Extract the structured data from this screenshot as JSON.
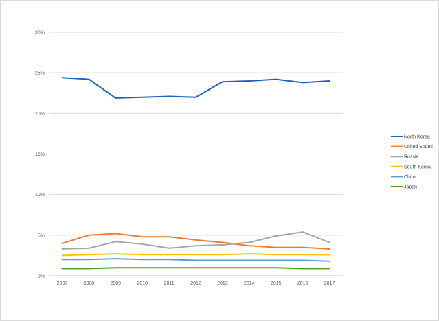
{
  "chart_data": {
    "type": "line",
    "title": "",
    "xlabel": "",
    "ylabel": "",
    "x": [
      "2007",
      "2008",
      "2009",
      "2010",
      "2011",
      "2012",
      "2013",
      "2014",
      "2015",
      "2016",
      "2017"
    ],
    "ylim": [
      0,
      30
    ],
    "yticks": [
      0,
      5,
      10,
      15,
      20,
      25,
      30
    ],
    "ytick_labels": [
      "0%",
      "5%",
      "10%",
      "15%",
      "20%",
      "25%",
      "30%"
    ],
    "grid": true,
    "legend_position": "right",
    "series": [
      {
        "name": "North Korea",
        "color": "#1f5fbf",
        "values": [
          24.4,
          24.2,
          21.9,
          22.0,
          22.1,
          22.0,
          23.9,
          24.0,
          24.2,
          23.8,
          24.0
        ]
      },
      {
        "name": "United States",
        "color": "#ed7d31",
        "values": [
          4.0,
          5.0,
          5.2,
          4.8,
          4.8,
          4.4,
          4.1,
          3.7,
          3.5,
          3.5,
          3.3
        ]
      },
      {
        "name": "Russia",
        "color": "#a5a5a5",
        "values": [
          3.3,
          3.4,
          4.2,
          3.9,
          3.4,
          3.7,
          3.8,
          4.1,
          4.9,
          5.4,
          4.1
        ]
      },
      {
        "name": "South Korea",
        "color": "#ffc000",
        "values": [
          2.5,
          2.6,
          2.7,
          2.6,
          2.6,
          2.6,
          2.6,
          2.7,
          2.6,
          2.6,
          2.6
        ]
      },
      {
        "name": "China",
        "color": "#5b9bd5",
        "values": [
          2.0,
          2.0,
          2.1,
          2.0,
          2.0,
          1.9,
          1.9,
          1.9,
          1.9,
          1.9,
          1.8
        ]
      },
      {
        "name": "Japan",
        "color": "#4e9a1f",
        "values": [
          0.9,
          0.9,
          1.0,
          1.0,
          1.0,
          1.0,
          1.0,
          1.0,
          1.0,
          0.9,
          0.9
        ]
      }
    ]
  }
}
